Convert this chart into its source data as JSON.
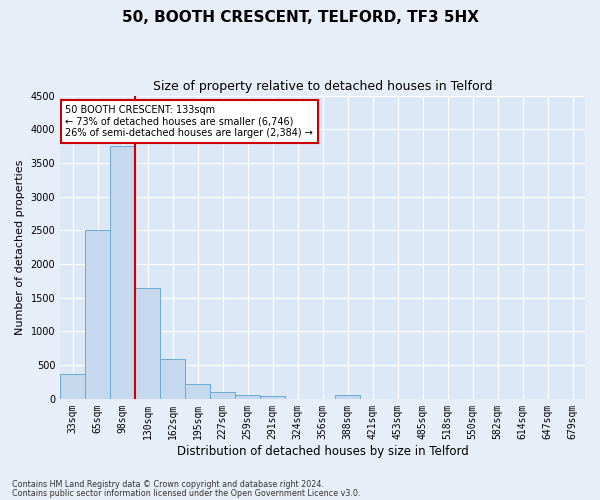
{
  "title": "50, BOOTH CRESCENT, TELFORD, TF3 5HX",
  "subtitle": "Size of property relative to detached houses in Telford",
  "xlabel": "Distribution of detached houses by size in Telford",
  "ylabel": "Number of detached properties",
  "categories": [
    "33sqm",
    "65sqm",
    "98sqm",
    "130sqm",
    "162sqm",
    "195sqm",
    "227sqm",
    "259sqm",
    "291sqm",
    "324sqm",
    "356sqm",
    "388sqm",
    "421sqm",
    "453sqm",
    "485sqm",
    "518sqm",
    "550sqm",
    "582sqm",
    "614sqm",
    "647sqm",
    "679sqm"
  ],
  "values": [
    370,
    2500,
    3750,
    1640,
    590,
    220,
    105,
    60,
    35,
    0,
    0,
    55,
    0,
    0,
    0,
    0,
    0,
    0,
    0,
    0,
    0
  ],
  "bar_color": "#c5d8ee",
  "bar_edge_color": "#6aaad4",
  "vline_color": "#cc0000",
  "vline_x_index": 3,
  "ylim": [
    0,
    4500
  ],
  "yticks": [
    0,
    500,
    1000,
    1500,
    2000,
    2500,
    3000,
    3500,
    4000,
    4500
  ],
  "annotation_title": "50 BOOTH CRESCENT: 133sqm",
  "annotation_line1": "← 73% of detached houses are smaller (6,746)",
  "annotation_line2": "26% of semi-detached houses are larger (2,384) →",
  "annotation_box_color": "#cc0000",
  "footnote1": "Contains HM Land Registry data © Crown copyright and database right 2024.",
  "footnote2": "Contains public sector information licensed under the Open Government Licence v3.0.",
  "bg_color": "#e8eef8",
  "plot_bg_color": "#dce8f5",
  "grid_color": "#ffffff",
  "title_fontsize": 11,
  "subtitle_fontsize": 9,
  "xlabel_fontsize": 8.5,
  "ylabel_fontsize": 8,
  "tick_fontsize": 7,
  "footnote_fontsize": 5.8
}
